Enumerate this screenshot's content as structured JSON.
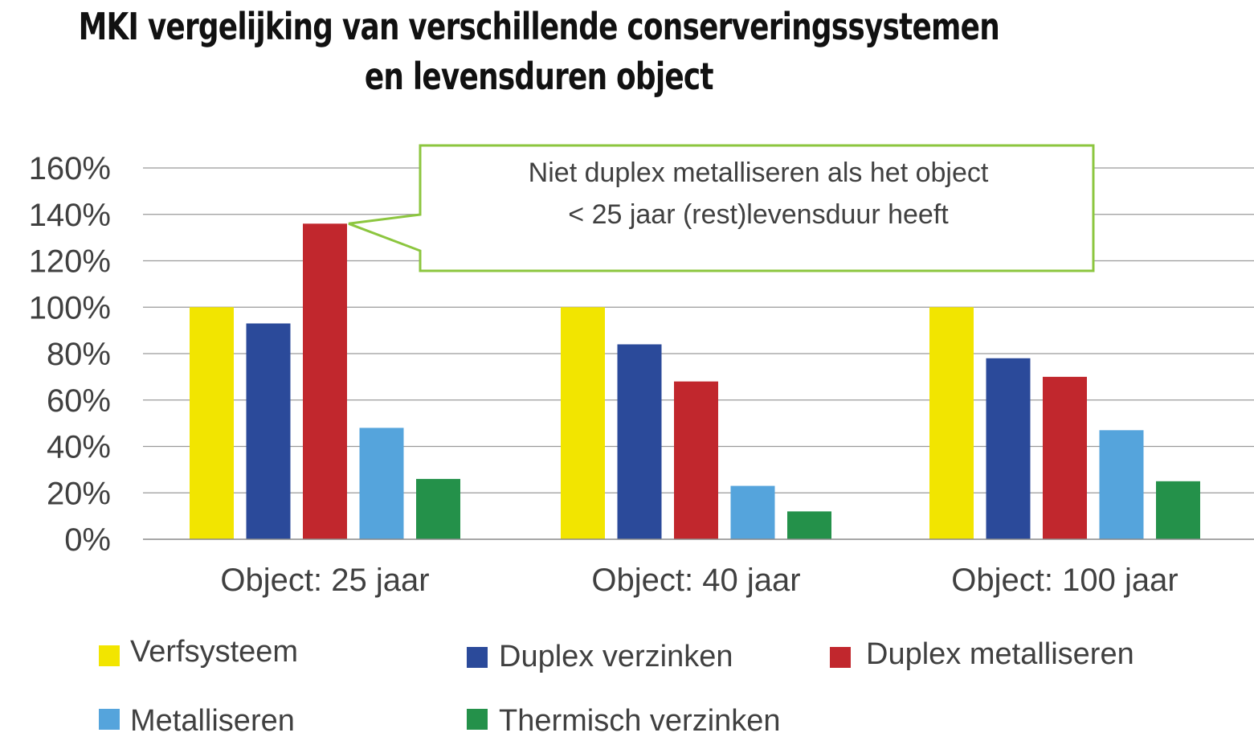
{
  "chart_data": {
    "type": "bar",
    "title_lines": [
      "MKI vergelijking van verschillende conserveringssystemen",
      "en levensduren object"
    ],
    "xlabel": "",
    "ylabel": "",
    "categories": [
      "Object: 25 jaar",
      "Object: 40 jaar",
      "Object: 100 jaar"
    ],
    "y_ticks": [
      "0%",
      "20%",
      "40%",
      "60%",
      "80%",
      "100%",
      "120%",
      "140%",
      "160%"
    ],
    "ylim": [
      0,
      160
    ],
    "grid": true,
    "legend_position": "bottom",
    "series": [
      {
        "name": "Verfsysteem",
        "color": "#f2e500",
        "values": [
          100,
          100,
          100
        ]
      },
      {
        "name": "Duplex verzinken",
        "color": "#2b4a9a",
        "values": [
          93,
          84,
          78
        ]
      },
      {
        "name": "Duplex metalliseren",
        "color": "#c1272d",
        "values": [
          136,
          68,
          70
        ]
      },
      {
        "name": "Metalliseren",
        "color": "#55a4dc",
        "values": [
          48,
          23,
          47
        ]
      },
      {
        "name": "Thermisch verzinken",
        "color": "#24914a",
        "values": [
          26,
          12,
          25
        ]
      }
    ],
    "annotation": {
      "lines": [
        "Niet duplex metalliseren als het object",
        "< 25 jaar (rest)levensduur heeft"
      ],
      "border_color": "#8cc63f",
      "points_to": {
        "category": "Object: 25 jaar",
        "series": "Duplex metalliseren"
      }
    }
  }
}
